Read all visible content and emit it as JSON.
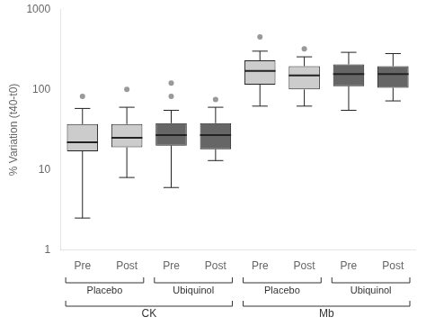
{
  "chart_data": {
    "type": "box",
    "ylabel": "% Variation (t40-t0)",
    "categories": [
      [
        "Pre",
        "Placebo",
        "CK"
      ],
      [
        "Post",
        "Placebo",
        "CK"
      ],
      [
        "Pre",
        "Ubiquinol",
        "CK"
      ],
      [
        "Post",
        "Ubiquinol",
        "CK"
      ],
      [
        "Pre",
        "Placebo",
        "Mb"
      ],
      [
        "Post",
        "Placebo",
        "Mb"
      ],
      [
        "Pre",
        "Ubiquinol",
        "Mb"
      ],
      [
        "Post",
        "Ubiquinol",
        "Mb"
      ]
    ],
    "values": [
      {
        "q1": 17,
        "median": 22,
        "q3": 37,
        "whislo": 2.5,
        "whishi": 58,
        "fliers": [
          82
        ]
      },
      {
        "q1": 19,
        "median": 25,
        "q3": 37,
        "whislo": 8,
        "whishi": 60,
        "fliers": [
          100
        ]
      },
      {
        "q1": 20,
        "median": 27,
        "q3": 38,
        "whislo": 6,
        "whishi": 55,
        "fliers": [
          120,
          82
        ]
      },
      {
        "q1": 18,
        "median": 27,
        "q3": 38,
        "whislo": 13,
        "whishi": 60,
        "fliers": [
          75
        ]
      },
      {
        "q1": 115,
        "median": 170,
        "q3": 230,
        "whislo": 62,
        "whishi": 300,
        "fliers": [
          450
        ]
      },
      {
        "q1": 100,
        "median": 150,
        "q3": 195,
        "whislo": 62,
        "whishi": 255,
        "fliers": [
          320
        ]
      },
      {
        "q1": 110,
        "median": 155,
        "q3": 205,
        "whislo": 55,
        "whishi": 290,
        "fliers": []
      },
      {
        "q1": 105,
        "median": 155,
        "q3": 195,
        "whislo": 72,
        "whishi": 280,
        "fliers": []
      }
    ],
    "colors": [
      "#cccccc",
      "#cccccc",
      "#666666",
      "#666666",
      "#cccccc",
      "#cccccc",
      "#666666",
      "#666666"
    ],
    "log": "y",
    "ylim": [
      1,
      1000
    ],
    "yticks": [
      1,
      10,
      100,
      1000
    ],
    "grid": false
  }
}
